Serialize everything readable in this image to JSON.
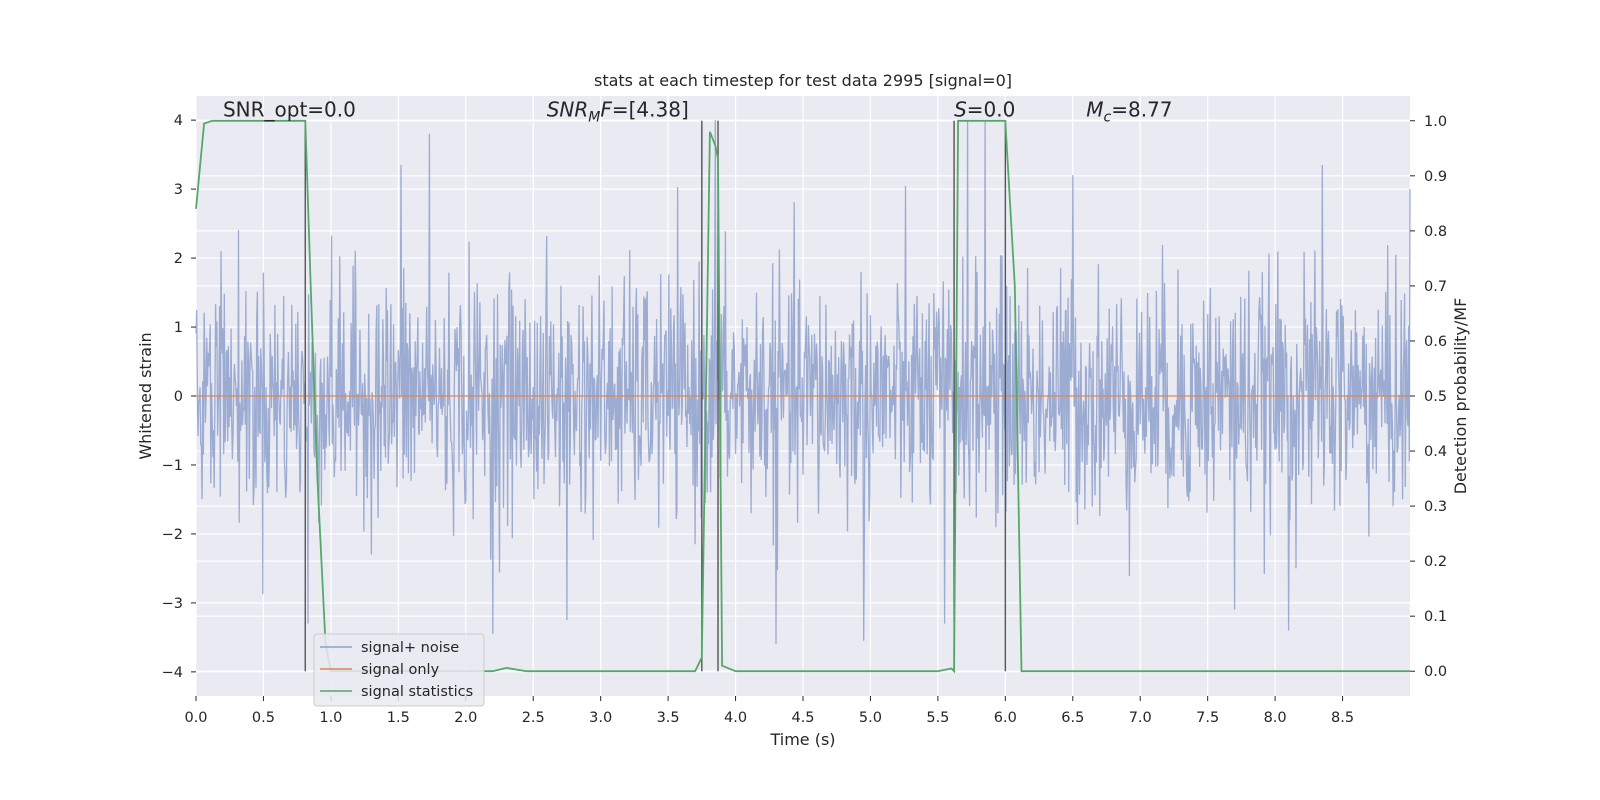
{
  "chart_data": {
    "type": "line",
    "title": "stats at each timestep for test data 2995 [signal=0]",
    "xlabel": "Time (s)",
    "ylabel": "Whitened strain",
    "y2label": "Detection probability/MF",
    "xlim": [
      0.0,
      9.0
    ],
    "ylim": [
      -4.35,
      4.35
    ],
    "y2lim": [
      -0.045,
      1.045
    ],
    "xticks": [
      "0.0",
      "0.5",
      "1.0",
      "1.5",
      "2.0",
      "2.5",
      "3.0",
      "3.5",
      "4.0",
      "4.5",
      "5.0",
      "5.5",
      "6.0",
      "6.5",
      "7.0",
      "7.5",
      "8.0",
      "8.5"
    ],
    "yticks": [
      "−4",
      "−3",
      "−2",
      "−1",
      "0",
      "1",
      "2",
      "3",
      "4"
    ],
    "y2ticks": [
      "0.0",
      "0.1",
      "0.2",
      "0.3",
      "0.4",
      "0.5",
      "0.6",
      "0.7",
      "0.8",
      "0.9",
      "1.0"
    ],
    "grid": true,
    "legend_position": "lower-left",
    "annotations": [
      {
        "prefix": "SNR_opt=0.0",
        "sub": "",
        "suffix": "",
        "x": 0.2,
        "y": 4.05
      },
      {
        "prefix": "SNR",
        "sub": "M",
        "suffix": "F=[4.38]",
        "x": 2.6,
        "y": 4.05,
        "italic": true
      },
      {
        "prefix": "S",
        "sub": "",
        "suffix": "=0.0",
        "x": 5.62,
        "y": 4.05,
        "italic": true
      },
      {
        "prefix": "M",
        "sub": "c",
        "suffix": "=8.77",
        "x": 6.6,
        "y": 4.05,
        "italic": true
      }
    ],
    "vlines": [
      0.81,
      3.75,
      3.87,
      5.62,
      6.0
    ],
    "series": [
      {
        "name": "signal+ noise",
        "color": "#8da0cb",
        "kind": "noise",
        "sigma": 0.85,
        "n": 1800,
        "peaks": [
          [
            0.83,
            -3.3
          ],
          [
            1.52,
            3.35
          ],
          [
            1.73,
            3.8
          ],
          [
            2.2,
            -3.45
          ],
          [
            2.75,
            -3.25
          ],
          [
            3.85,
            4.0
          ],
          [
            4.3,
            -3.6
          ],
          [
            4.95,
            -3.55
          ],
          [
            5.72,
            4.0
          ],
          [
            5.85,
            4.0
          ],
          [
            5.55,
            -3.3
          ],
          [
            6.5,
            3.2
          ],
          [
            7.7,
            -3.1
          ],
          [
            8.1,
            -3.4
          ],
          [
            8.35,
            3.35
          ],
          [
            9.0,
            3.0
          ]
        ]
      },
      {
        "name": "signal only",
        "color": "#dd8452",
        "kind": "line",
        "x": [
          0.0,
          9.0
        ],
        "y": [
          0.0,
          0.0
        ]
      },
      {
        "name": "signal statistics",
        "color": "#55a868",
        "kind": "prob",
        "x": [
          0.0,
          0.06,
          0.12,
          0.3,
          0.5,
          0.7,
          0.79,
          0.81,
          0.85,
          0.9,
          0.96,
          1.0,
          1.1,
          1.3,
          1.5,
          2.0,
          2.15,
          2.2,
          2.3,
          2.38,
          2.45,
          2.6,
          3.0,
          3.5,
          3.7,
          3.75,
          3.78,
          3.81,
          3.85,
          3.87,
          3.9,
          4.0,
          4.5,
          5.0,
          5.5,
          5.6,
          5.62,
          5.65,
          5.7,
          5.8,
          5.9,
          6.0,
          6.07,
          6.12,
          6.5,
          7.0,
          8.0,
          9.0
        ],
        "y": [
          0.84,
          0.995,
          1.0,
          1.0,
          1.0,
          1.0,
          1.0,
          1.0,
          0.7,
          0.35,
          0.05,
          0.0,
          0.0,
          0.0,
          0.0,
          0.0,
          0.0,
          0.0,
          0.006,
          0.003,
          0.0,
          0.0,
          0.0,
          0.0,
          0.0,
          0.025,
          0.5,
          0.98,
          0.955,
          0.93,
          0.01,
          0.0,
          0.0,
          0.0,
          0.0,
          0.005,
          0.0,
          1.0,
          1.0,
          1.0,
          1.0,
          1.0,
          0.7,
          0.0,
          0.0,
          0.0,
          0.0,
          0.0
        ]
      }
    ]
  }
}
